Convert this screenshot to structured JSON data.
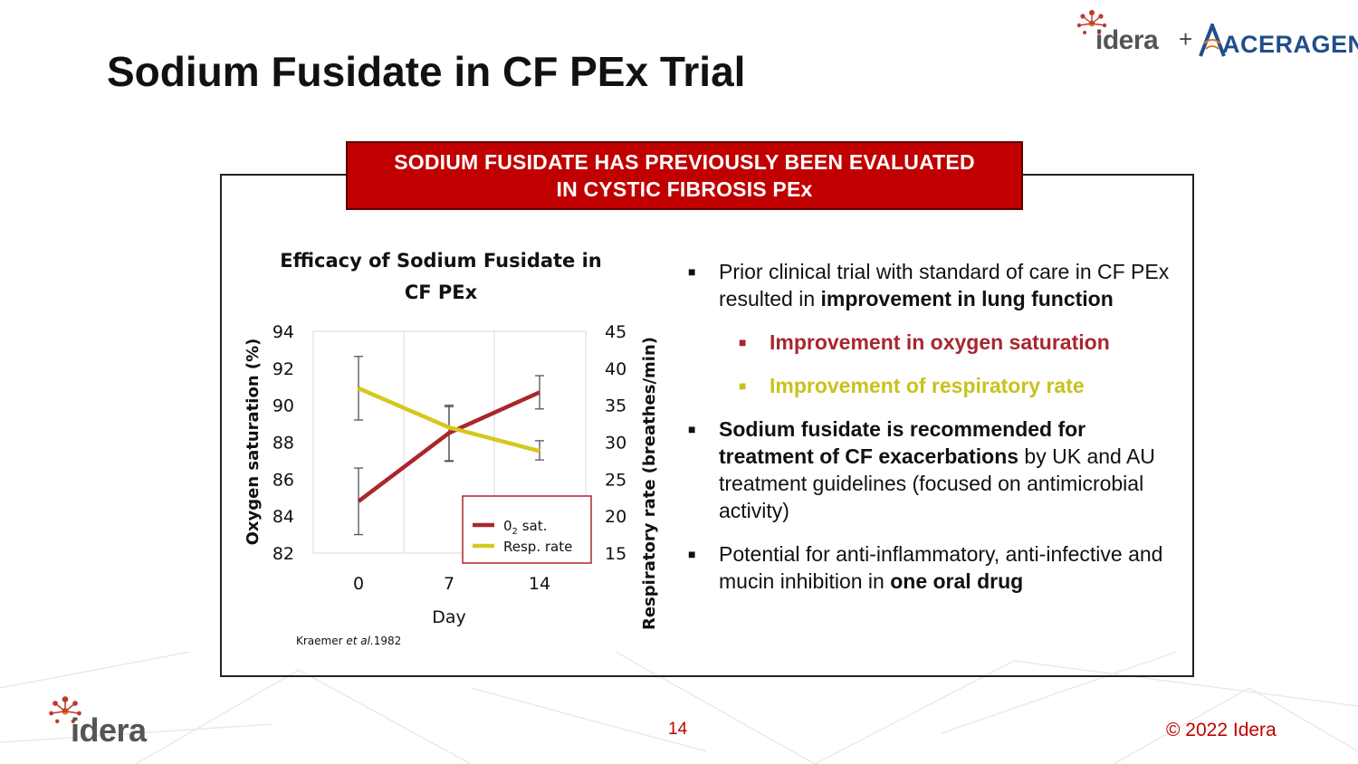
{
  "slide": {
    "title": "Sodium Fusidate in CF PEx Trial",
    "page_number": "14",
    "copyright": "© 2022 Idera"
  },
  "logos": {
    "idera": "idera",
    "plus": "+",
    "aceragen": "ACERAGEN"
  },
  "banner": {
    "line1": "SODIUM FUSIDATE HAS PREVIOUSLY BEEN EVALUATED",
    "line2": "IN CYSTIC FIBROSIS PEx"
  },
  "bullets": {
    "b1_pre": "Prior clinical trial with standard of care in CF PEx resulted in ",
    "b1_bold": "improvement in lung function",
    "sub1": "Improvement in oxygen saturation",
    "sub2": "Improvement of respiratory rate",
    "b2_bold": "Sodium fusidate is recommended for treatment of CF exacerbations",
    "b2_post": " by UK and AU treatment guidelines (focused on antimicrobial activity)",
    "b3_pre": "Potential for anti-inflammatory, anti-infective and mucin inhibition in ",
    "b3_bold": "one oral drug"
  },
  "colors": {
    "banner": "#c00000",
    "o2_series": "#a8272d",
    "resp_series": "#d6c81c",
    "accent_red": "#c00000"
  },
  "chart_data": {
    "type": "line",
    "title_line1": "Efficacy of Sodium Fusidate in",
    "title_line2": "CF PEx",
    "xlabel": "Day",
    "ylabel_left": "Oxygen saturation (%)",
    "ylabel_right": "Respiratory rate (breathes/min)",
    "categories": [
      "0",
      "7",
      "14"
    ],
    "ylim_left": [
      82,
      94
    ],
    "yticks_left": [
      "82",
      "84",
      "86",
      "88",
      "90",
      "92",
      "94"
    ],
    "ylim_right": [
      15,
      45
    ],
    "yticks_right": [
      "15",
      "20",
      "25",
      "30",
      "35",
      "40",
      "45"
    ],
    "grid": "vertical",
    "legend_position": "bottom-right",
    "series": [
      {
        "name": "0",
        "name_sub": "2",
        "name_post": " sat.",
        "axis": "left",
        "values": [
          84.8,
          88.5,
          90.7
        ],
        "error_low": [
          83.0,
          87.0,
          89.8
        ],
        "error_high": [
          86.6,
          90.0,
          91.6
        ]
      },
      {
        "name": "Resp. rate",
        "axis": "right",
        "values": [
          37.3,
          32.0,
          28.8
        ],
        "error_low": [
          33.0,
          27.4,
          27.6
        ],
        "error_high": [
          41.6,
          34.8,
          30.2
        ]
      }
    ],
    "source_pre": "Kraemer ",
    "source_italic": "et al.",
    "source_post": "1982"
  }
}
